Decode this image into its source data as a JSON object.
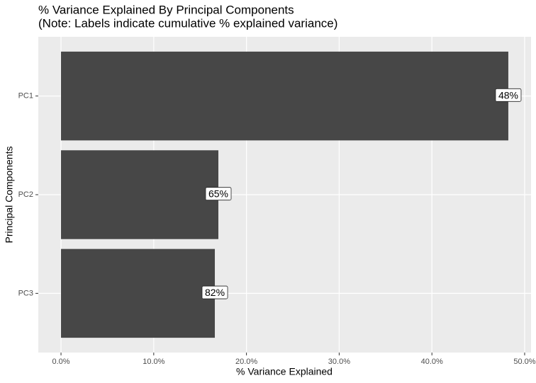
{
  "chart_data": {
    "type": "hbar",
    "title": "% Variance Explained By Principal Components",
    "subtitle": "(Note: Labels indicate cumulative % explained variance)",
    "x_label": "% Variance Explained",
    "y_label": "Principal Components",
    "categories": [
      "PC1",
      "PC2",
      "PC3"
    ],
    "values": [
      48.24,
      16.97,
      16.59
    ],
    "cumulative_labels": [
      "48%",
      "65%",
      "82%"
    ],
    "color": "#474747",
    "xlim": [
      -2.45,
      50.69
    ],
    "xticks": [
      {
        "value": 0,
        "label": "0.0%"
      },
      {
        "value": 10,
        "label": "10.0%"
      },
      {
        "value": 20,
        "label": "20.0%"
      },
      {
        "value": 30,
        "label": "30.0%"
      },
      {
        "value": 40,
        "label": "40.0%"
      },
      {
        "value": 50,
        "label": "50.0%"
      }
    ],
    "grid": true
  }
}
